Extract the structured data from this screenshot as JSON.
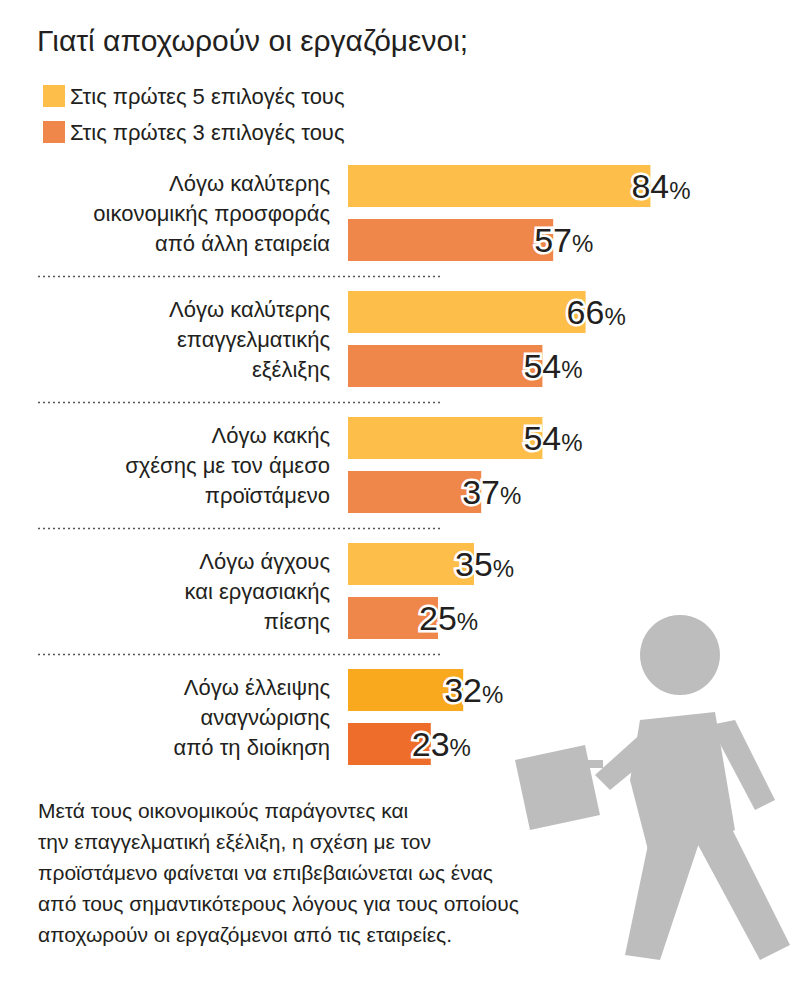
{
  "chart_data": {
    "type": "bar",
    "title": "Γιατί αποχωρούν οι εργαζόμενοι;",
    "orientation": "horizontal",
    "categories": [
      "Λόγω καλύτερης\nοικονομικής προσφοράς\nαπό άλλη εταιρεία",
      "Λόγω καλύτερης\nεπαγγελματικής\nεξέλιξης",
      "Λόγω κακής\nσχέσης με τον άμεσο\nπροϊστάμενο",
      "Λόγω άγχους\nκαι εργασιακής\nπίεσης",
      "Λόγω έλλειψης\nαναγνώρισης\nαπό τη διοίκηση"
    ],
    "series": [
      {
        "name": "Στις πρώτες 5 επιλογές τους",
        "color": "#FDBE4A",
        "colors": [
          "#FDBE4A",
          "#FDBE4A",
          "#FDBE4A",
          "#FDBE4A",
          "#F9A91E"
        ],
        "values": [
          84,
          66,
          54,
          35,
          32
        ],
        "value_labels": [
          "84%",
          "66%",
          "54%",
          "35%",
          "32%"
        ]
      },
      {
        "name": "Στις πρώτες 3 επιλογές τους",
        "color": "#F0874A",
        "colors": [
          "#F0874A",
          "#F0874A",
          "#F0874A",
          "#F0874A",
          "#EE6D2A"
        ],
        "values": [
          57,
          54,
          37,
          25,
          23
        ],
        "value_labels": [
          "57%",
          "54%",
          "37%",
          "25%",
          "23%"
        ]
      }
    ],
    "xlim": [
      0,
      100
    ],
    "tick_labels": false,
    "grid": false,
    "legend": "top-left",
    "data_labels": true,
    "annotations": [
      "Μετά τους οικονομικούς παράγοντες και\nτην επαγγελματική εξέλιξη, η σχέση με τον\nπροϊστάμενο φαίνεται να επιβεβαιώνεται ως ένας\nαπό τους σημαντικότερους λόγους για τους οποίους\nαποχωρούν οι εργαζόμενοι από τις εταιρείες."
    ]
  }
}
